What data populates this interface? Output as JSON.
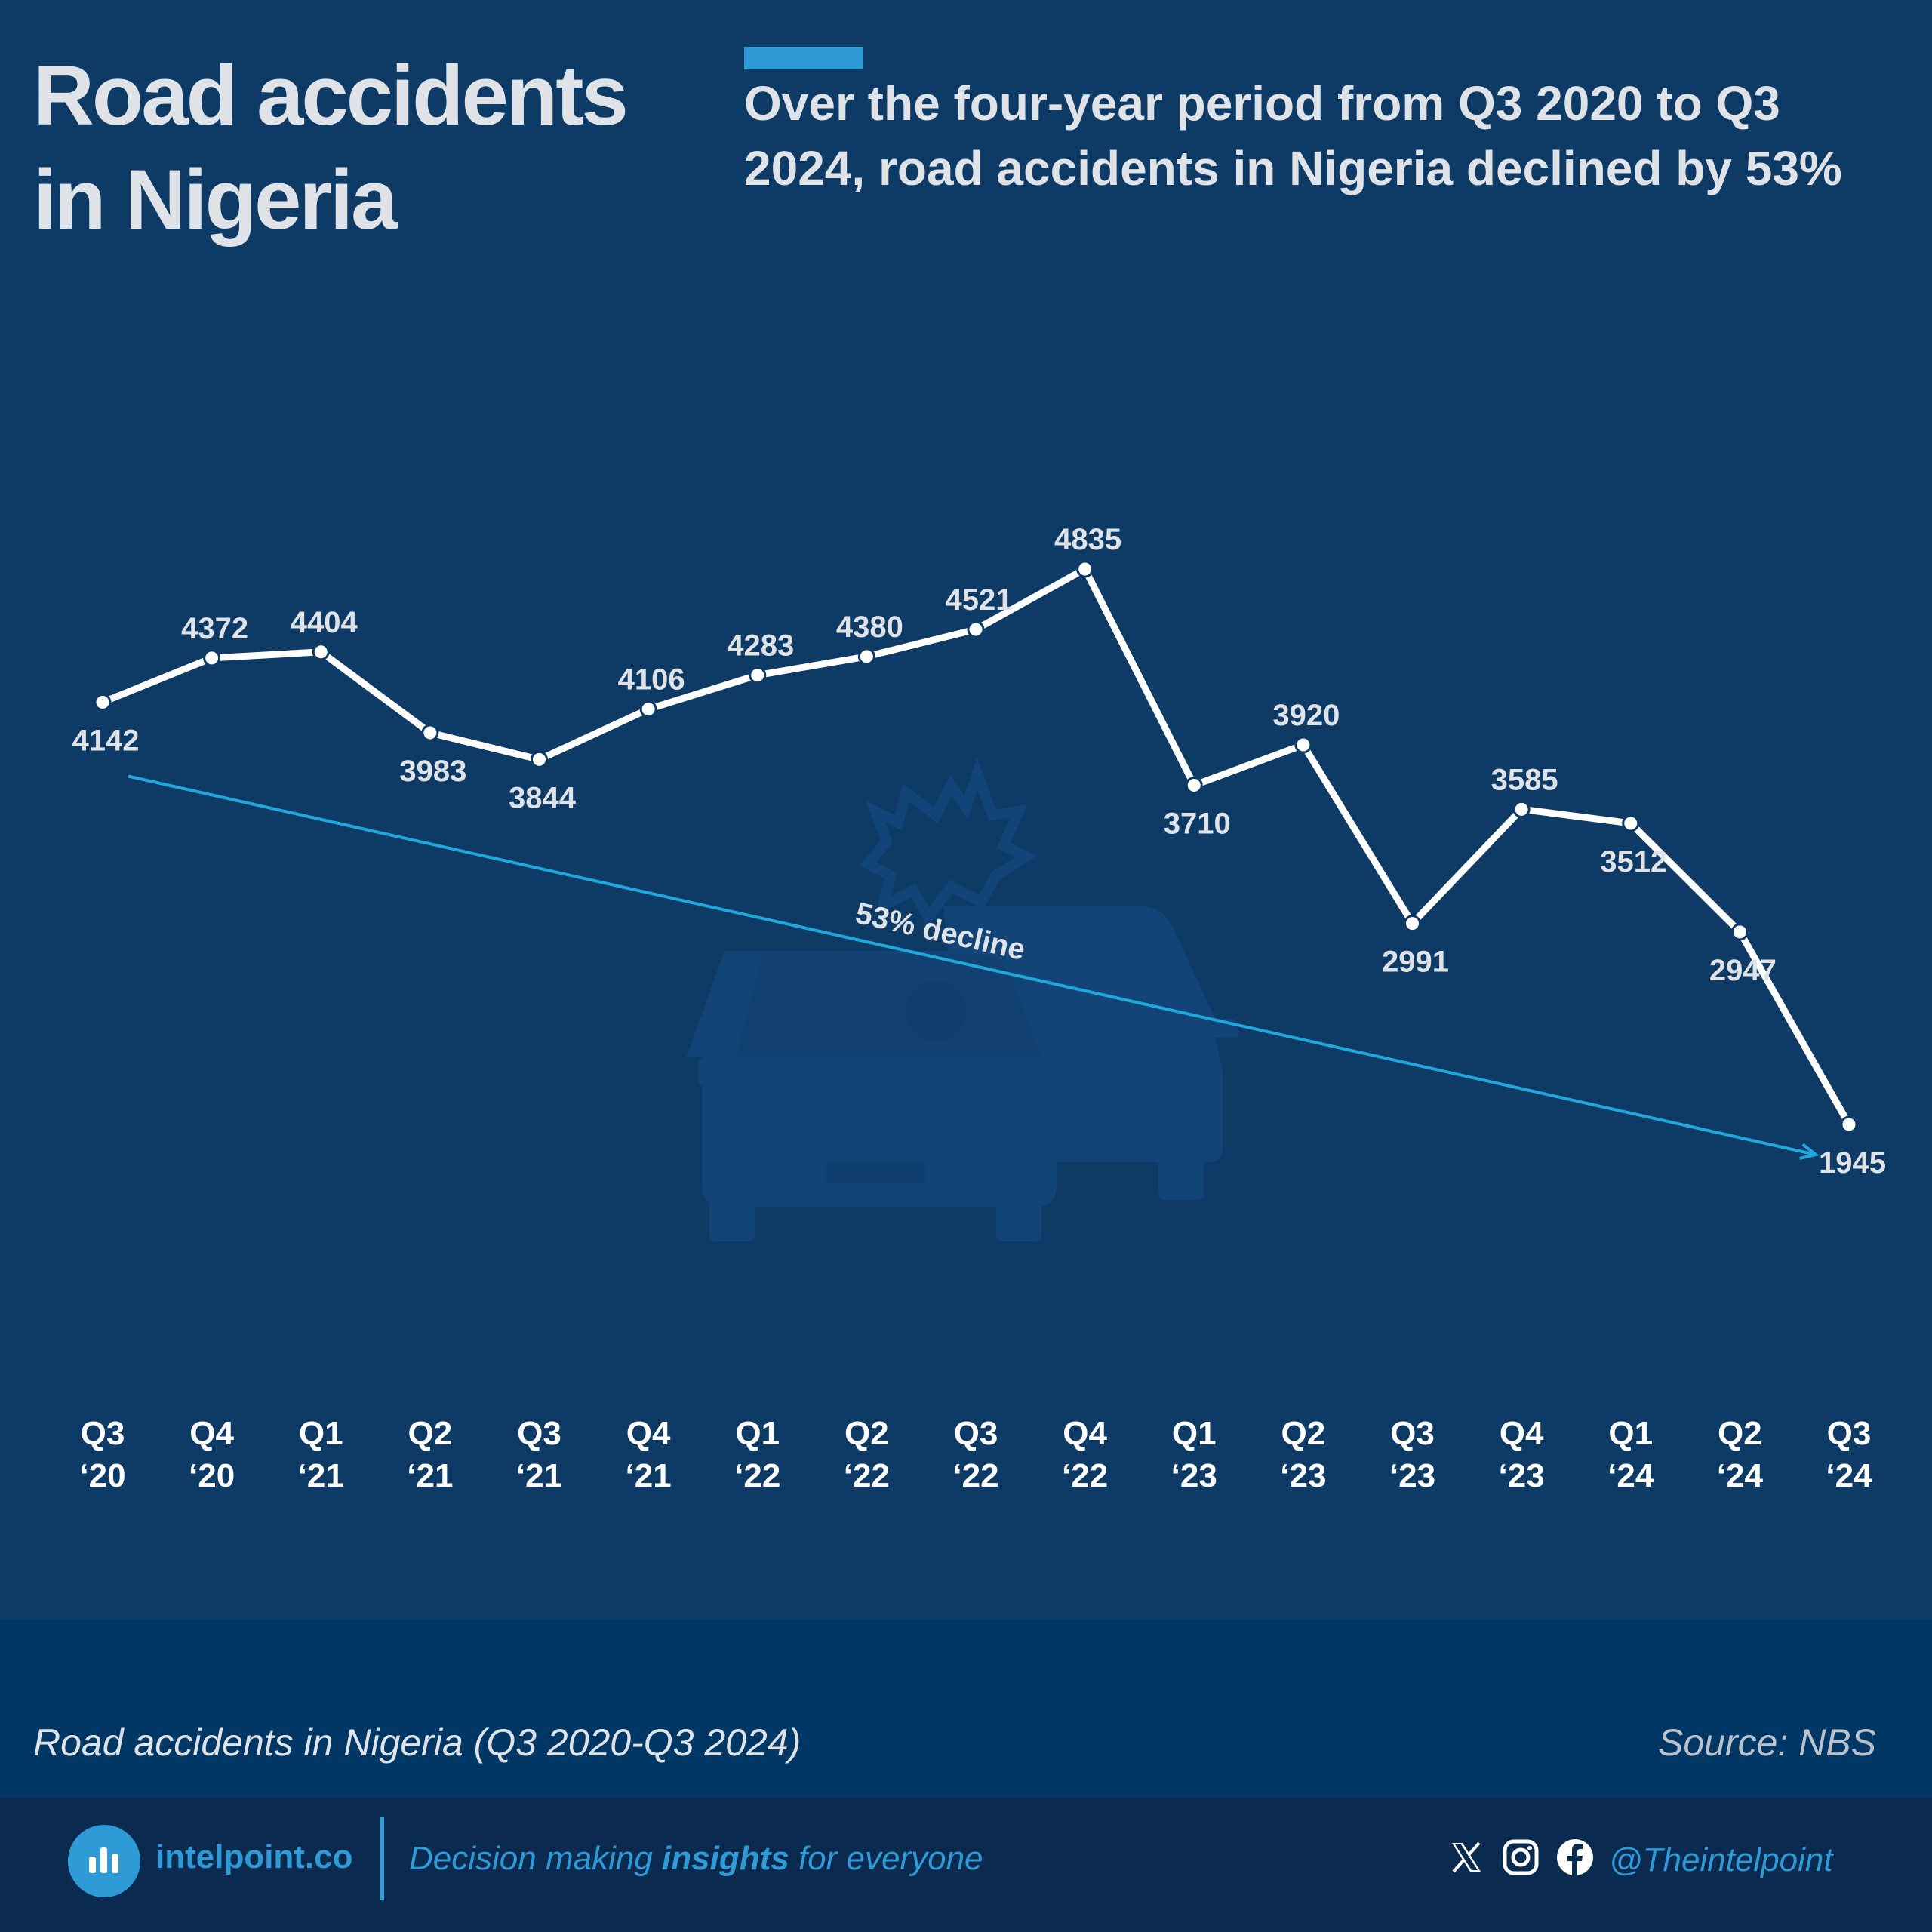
{
  "header": {
    "title": "Road accidents in Nigeria",
    "subtitle": "Over the four-year period from Q3 2020 to Q3 2024, road accidents in Nigeria declined by 53%"
  },
  "chart_data": {
    "type": "line",
    "categories": [
      "Q3 ‘20",
      "Q4 ‘20",
      "Q1 ‘21",
      "Q2 ‘21",
      "Q3 ‘21",
      "Q4 ‘21",
      "Q1 ‘22",
      "Q2 ‘22",
      "Q3 ‘22",
      "Q4 ‘22",
      "Q1 ‘23",
      "Q2 ‘23",
      "Q3 ‘23",
      "Q4 ‘23",
      "Q1 ‘24",
      "Q2 ‘24",
      "Q3 ‘24"
    ],
    "series": [
      {
        "values": [
          4142,
          4372,
          4404,
          3983,
          3844,
          4106,
          4283,
          4380,
          4521,
          4835,
          3710,
          3920,
          2991,
          3585,
          3512,
          2947,
          1945
        ]
      }
    ],
    "annotation": "53% decline",
    "grid": false,
    "colors": {
      "line": "#ffffff",
      "trend": "#1fa8dc",
      "background": "#0e3a66"
    }
  },
  "footer": {
    "caption": "Road accidents in Nigeria (Q3 2020-Q3 2024)",
    "source": "Source: NBS",
    "brand": "intelpoint.co",
    "tagline_pre": "Decision making ",
    "tagline_bold": "insights",
    "tagline_post": " for everyone",
    "handle": "@Theintelpoint",
    "icons": [
      "x-icon",
      "instagram-icon",
      "facebook-icon"
    ],
    "accent_color": "#2f9bd6"
  }
}
